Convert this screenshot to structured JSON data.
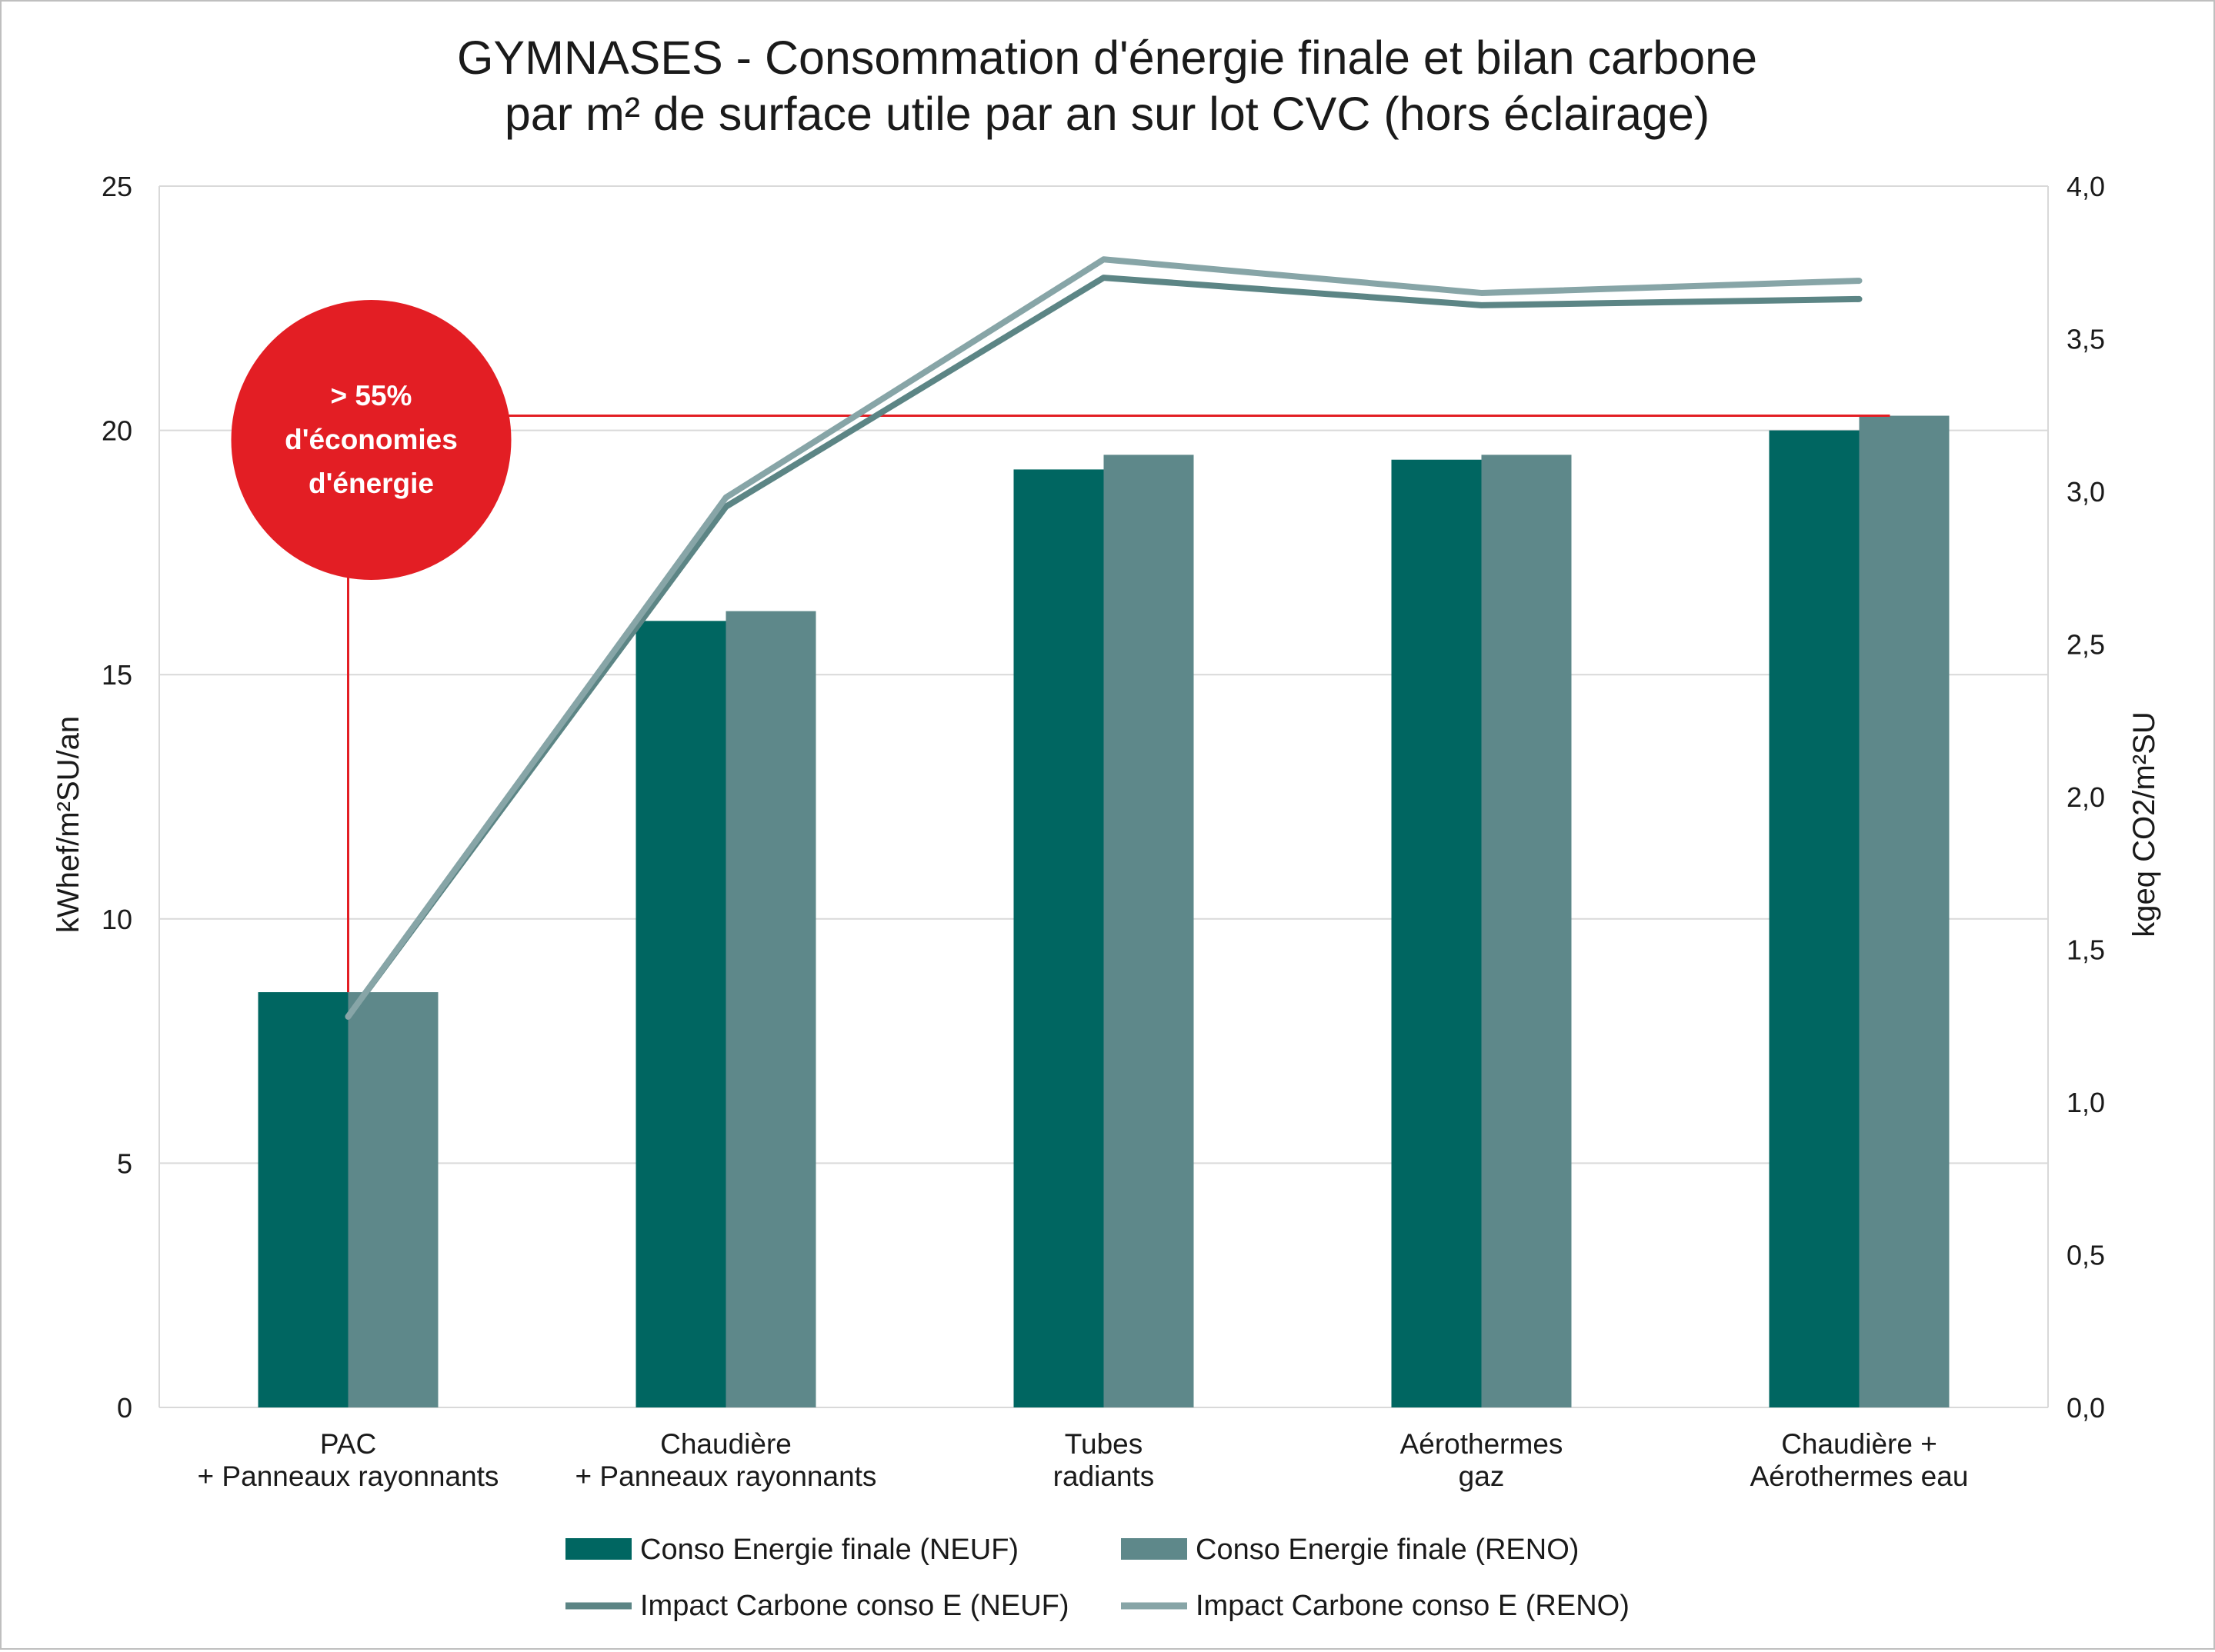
{
  "colors": {
    "neuf_bar": "#006661",
    "reno_bar": "#5e888a",
    "neuf_line": "#5c8585",
    "reno_line": "#87a5a7",
    "annotation": "#e31e24",
    "grid": "#d9d9d9"
  },
  "chart_data": {
    "type": "bar",
    "title": [
      "GYMNASES - Consommation d'énergie finale et bilan carbone",
      "par m² de surface utile par an sur lot CVC (hors éclairage)"
    ],
    "categories": [
      [
        "PAC",
        "+ Panneaux rayonnants"
      ],
      [
        "Chaudière",
        "+ Panneaux rayonnants"
      ],
      [
        "Tubes",
        "radiants"
      ],
      [
        "Aérothermes",
        "gaz"
      ],
      [
        "Chaudière +",
        "Aérothermes eau"
      ]
    ],
    "ylabel": "kWhef/m²SU/an",
    "y2label": "kgeq CO2/m²SU",
    "ylim": [
      0,
      25
    ],
    "y2lim": [
      0,
      4
    ],
    "yticks": [
      "0",
      "5",
      "10",
      "15",
      "20",
      "25"
    ],
    "y2ticks": [
      "0,0",
      "0,5",
      "1,0",
      "1,5",
      "2,0",
      "2,5",
      "3,0",
      "3,5",
      "4,0"
    ],
    "grid": true,
    "legend_position": "bottom",
    "series": [
      {
        "name": "Conso Energie finale (NEUF)",
        "kind": "bar",
        "axis": "left",
        "values": [
          8.5,
          16.1,
          19.2,
          19.4,
          20.0
        ]
      },
      {
        "name": "Conso Energie finale (RENO)",
        "kind": "bar",
        "axis": "left",
        "values": [
          8.5,
          16.3,
          19.5,
          19.5,
          20.3
        ]
      },
      {
        "name": "Impact Carbone conso E (NEUF)",
        "kind": "line",
        "axis": "right",
        "values": [
          1.28,
          2.95,
          3.7,
          3.61,
          3.63
        ]
      },
      {
        "name": "Impact Carbone conso E (RENO)",
        "kind": "line",
        "axis": "right",
        "values": [
          1.28,
          2.98,
          3.76,
          3.65,
          3.69
        ]
      }
    ],
    "annotation": {
      "text": [
        "> 55%",
        "d'économies",
        "d'énergie"
      ],
      "reference_value": 20.3
    }
  }
}
